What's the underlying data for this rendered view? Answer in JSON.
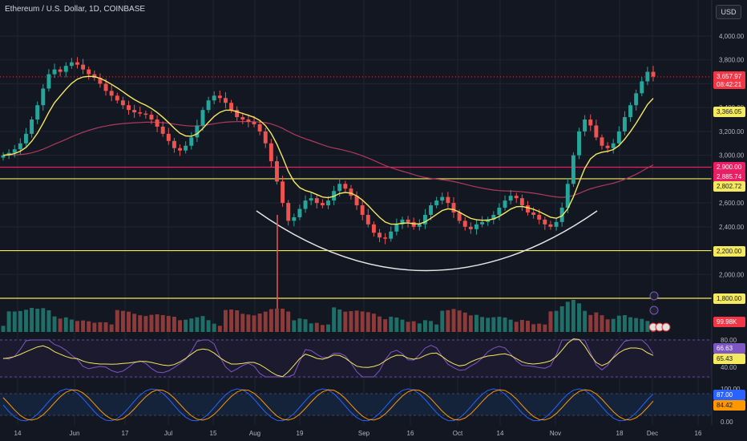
{
  "header": {
    "title": "Ethereum / U.S. Dollar, 1D, COINBASE",
    "currency_button": "USD"
  },
  "colors": {
    "background": "#131722",
    "up": "#26a69a",
    "down": "#ef5350",
    "ema_fast": "#f5e960",
    "ema_slow": "#b0395d",
    "horizontal_level": "#f5e960",
    "cup_arc": "#e6e6e6",
    "rsi": "#7e57c2",
    "stoch_k": "#2962ff",
    "stoch_d": "#ff9800"
  },
  "chart_data": {
    "type": "candlestick",
    "symbol": "Ethereum / U.S. Dollar",
    "timeframe": "1D",
    "exchange": "COINBASE",
    "price_axis": {
      "ticks": [
        "4,000.00",
        "3,800.00",
        "3,600.00",
        "3,400.00",
        "3,200.00",
        "3,000.00",
        "2,800.00",
        "2,600.00",
        "2,400.00",
        "2,200.00",
        "2,000.00",
        "1,800.00"
      ],
      "range": [
        1800,
        4000
      ]
    },
    "time_axis": {
      "ticks": [
        "14",
        "Jun",
        "17",
        "Jul",
        "15",
        "Aug",
        "19",
        "Sep",
        "16",
        "Oct",
        "14",
        "Nov",
        "18",
        "Dec",
        "16"
      ]
    },
    "close_series": [
      3000,
      3020,
      3050,
      3100,
      3180,
      3300,
      3420,
      3560,
      3680,
      3720,
      3700,
      3750,
      3780,
      3760,
      3720,
      3680,
      3650,
      3600,
      3540,
      3500,
      3460,
      3420,
      3380,
      3360,
      3350,
      3340,
      3300,
      3240,
      3180,
      3120,
      3060,
      3040,
      3080,
      3150,
      3250,
      3380,
      3460,
      3500,
      3480,
      3440,
      3380,
      3320,
      3300,
      3280,
      3260,
      3200,
      3100,
      2950,
      2780,
      2600,
      2450,
      2480,
      2550,
      2620,
      2640,
      2600,
      2580,
      2620,
      2700,
      2760,
      2720,
      2660,
      2580,
      2500,
      2420,
      2350,
      2310,
      2300,
      2360,
      2420,
      2460,
      2440,
      2400,
      2420,
      2500,
      2580,
      2620,
      2650,
      2600,
      2520,
      2450,
      2400,
      2380,
      2420,
      2440,
      2460,
      2500,
      2560,
      2620,
      2660,
      2640,
      2580,
      2520,
      2500,
      2460,
      2420,
      2400,
      2440,
      2560,
      2760,
      3000,
      3200,
      3300,
      3250,
      3150,
      3080,
      3060,
      3100,
      3200,
      3320,
      3420,
      3520,
      3620,
      3700,
      3660
    ],
    "horizontal_levels": [
      {
        "price": 2900.0,
        "label": "2,900.00",
        "color": "#e91e63"
      },
      {
        "price": 2802.72,
        "label": "2,802.72",
        "color": "#f5e960"
      },
      {
        "price": 2200.0,
        "label": "2,200.00",
        "color": "#f5e960"
      },
      {
        "price": 1800.0,
        "label": "1,800.00",
        "color": "#f5e960"
      }
    ],
    "price_tags": [
      {
        "label": "3,657.97",
        "sub": "08:42:21",
        "color": "#f23645"
      },
      {
        "label": "3,366.05",
        "color": "#f5e960"
      },
      {
        "label": "2,885.74",
        "color": "#e91e63"
      }
    ],
    "annotations": [
      "cup arc under Aug–Nov base"
    ],
    "volume": {
      "last_label": "99.98K"
    },
    "rsi": {
      "ticks": [
        "80.00",
        "40.00"
      ],
      "value_tag": "66.63",
      "ma_tag": "65.43"
    },
    "stoch": {
      "ticks": [
        "100.00",
        "0.00"
      ],
      "k_tag": "87.00",
      "d_tag": "84.42"
    },
    "grid": true
  }
}
